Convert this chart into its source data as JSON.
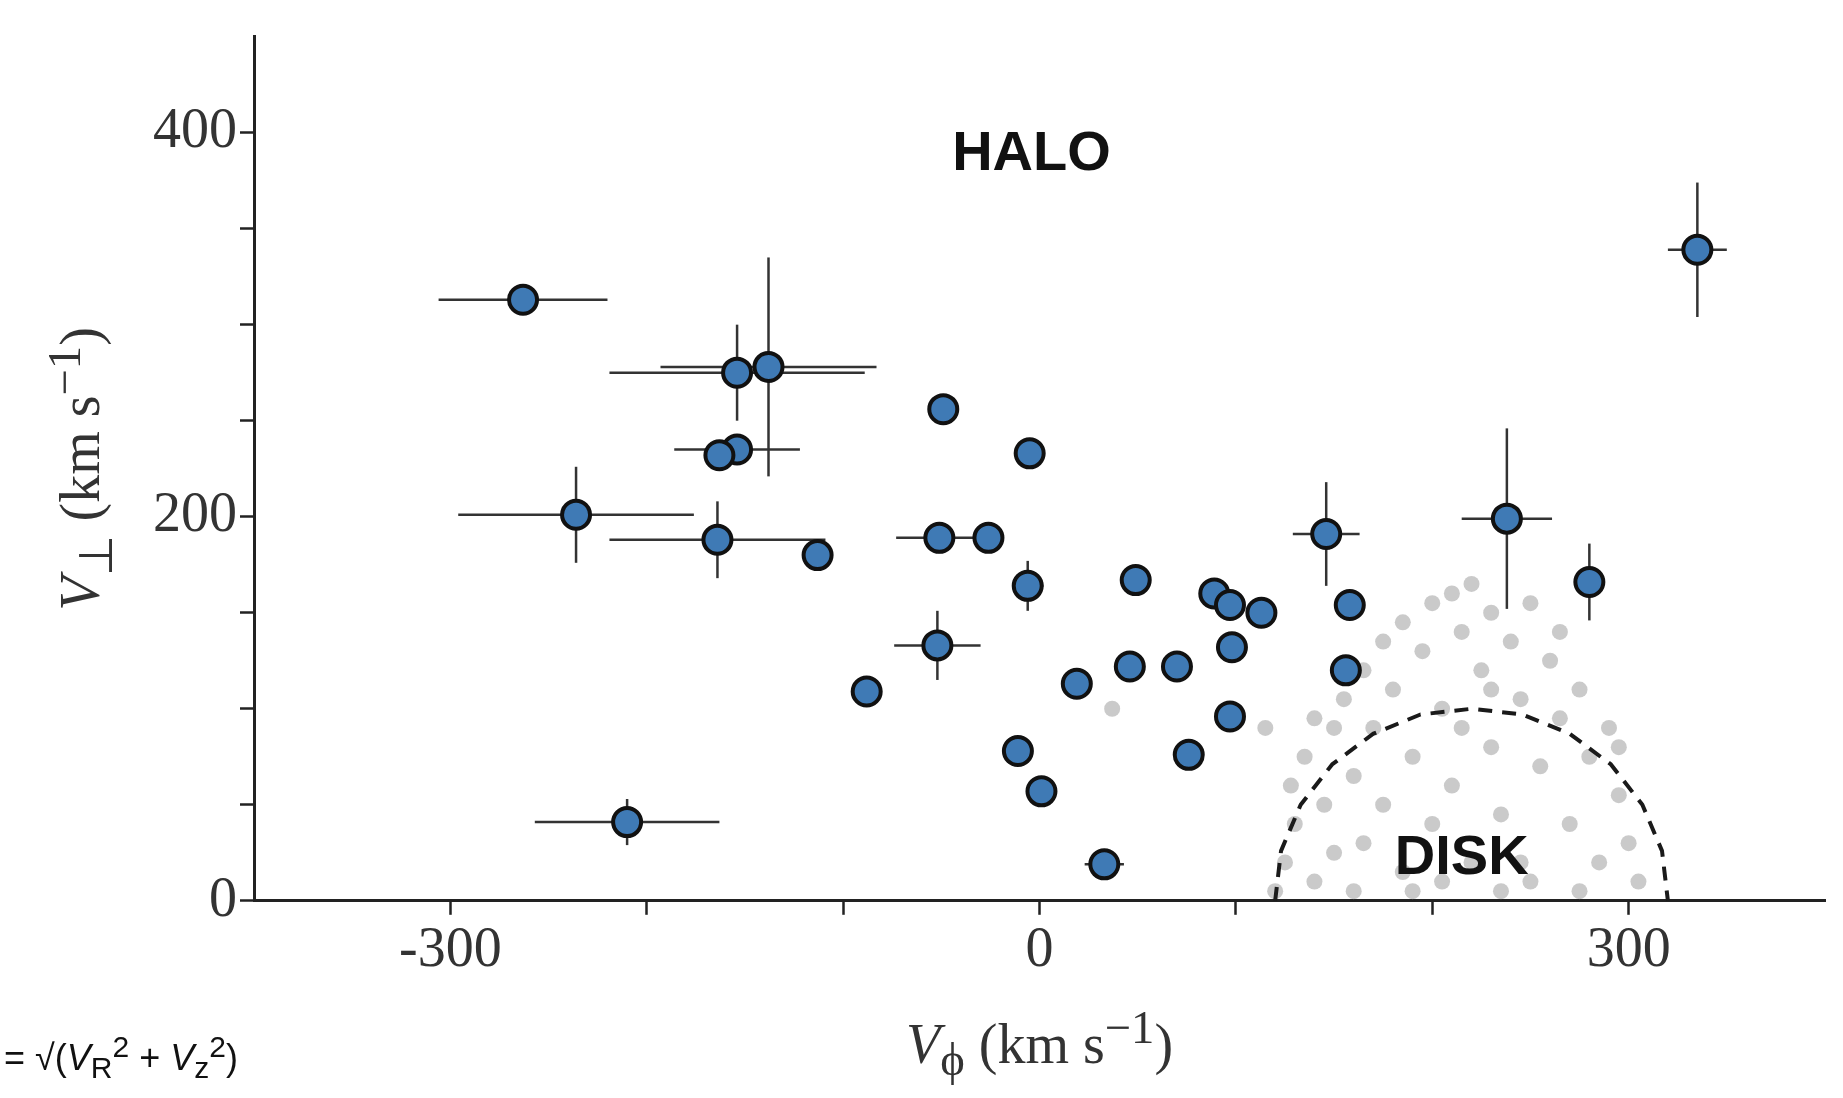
{
  "chart_data": {
    "type": "scatter",
    "xlabel": "V$_{ϕ}$ (km s$^{−1}$)",
    "ylabel": "V$_{⊥}$ (km s$^{−1}$)",
    "xlim": [
      -400,
      400
    ],
    "ylim": [
      0,
      450
    ],
    "xticks": [
      -300,
      {
        "value": -200,
        "label": null
      },
      {
        "value": -100,
        "label": null
      },
      0,
      {
        "value": 100,
        "label": null
      },
      {
        "value": 200,
        "label": null
      },
      300
    ],
    "yticks": [
      0,
      {
        "value": 50,
        "label": null
      },
      {
        "value": 100,
        "label": null
      },
      {
        "value": 150,
        "label": null
      },
      200,
      {
        "value": 250,
        "label": null
      },
      {
        "value": 300,
        "label": null
      },
      {
        "value": 350,
        "label": null
      },
      400
    ],
    "grid": false,
    "legend": false,
    "marker": "circle",
    "series": [
      {
        "color": "#a6a6a6",
        "x": [
          120,
          125,
          130,
          128,
          135,
          140,
          145,
          150,
          150,
          155,
          160,
          165,
          165,
          170,
          175,
          175,
          180,
          185,
          185,
          190,
          195,
          200,
          200,
          205,
          210,
          210,
          215,
          220,
          220,
          225,
          230,
          230,
          235,
          240,
          245,
          250,
          250,
          255,
          260,
          265,
          270,
          275,
          280,
          285,
          290,
          295,
          300,
          305,
          245,
          190,
          160,
          275,
          215,
          235,
          205,
          230,
          265,
          295,
          140,
          115,
          37
        ],
        "values": [
          5,
          20,
          40,
          60,
          75,
          10,
          50,
          90,
          25,
          105,
          65,
          120,
          30,
          90,
          135,
          50,
          110,
          145,
          15,
          75,
          130,
          155,
          40,
          100,
          160,
          60,
          140,
          165,
          20,
          120,
          150,
          80,
          45,
          135,
          105,
          155,
          10,
          70,
          125,
          95,
          40,
          110,
          75,
          20,
          90,
          55,
          30,
          10,
          20,
          5,
          5,
          5,
          90,
          5,
          10,
          110,
          140,
          80,
          95,
          90,
          100
        ]
      },
      {
        "type": "line",
        "color": "#1a1a1a",
        "line_style": "dashed",
        "marker": "none",
        "x": [
          120,
          123,
          133,
          149,
          170,
          194,
          220,
          246,
          270,
          291,
          307,
          317,
          320
        ],
        "values": [
          0,
          26,
          50,
          71,
          87,
          97,
          100,
          97,
          87,
          71,
          50,
          26,
          0
        ]
      },
      {
        "color": "#3f7ab5",
        "x": [
          -263,
          -154,
          -138,
          -49,
          -5,
          -154,
          -163,
          -236,
          -164,
          -113,
          -51,
          -26,
          -6,
          49,
          89,
          97,
          113,
          146,
          158,
          156,
          238,
          280,
          335,
          -52,
          -88,
          19,
          46,
          70,
          98,
          97,
          -11,
          1,
          76,
          33,
          -210
        ],
        "values": [
          313,
          275,
          278,
          256,
          233,
          235,
          232,
          201,
          188,
          180,
          189,
          189,
          164,
          167,
          160,
          154,
          150,
          191,
          154,
          120,
          199,
          166,
          339,
          133,
          109,
          113,
          122,
          122,
          132,
          96,
          78,
          57,
          76,
          19,
          41
        ],
        "errors": [
          null,
          25,
          57,
          null,
          null,
          null,
          null,
          25,
          20,
          null,
          8,
          null,
          13,
          null,
          null,
          null,
          null,
          27,
          null,
          null,
          47,
          20,
          35,
          18,
          null,
          null,
          null,
          null,
          null,
          null,
          null,
          null,
          null,
          6,
          12
        ],
        "xerrors": [
          43,
          65,
          55,
          null,
          null,
          32,
          null,
          60,
          55,
          null,
          22,
          null,
          8,
          null,
          null,
          null,
          null,
          17,
          null,
          null,
          23,
          null,
          15,
          22,
          null,
          null,
          null,
          null,
          null,
          null,
          null,
          null,
          null,
          10,
          47
        ]
      }
    ],
    "annotations": [
      "HALO",
      {
        "text": "DISK",
        "x": 215,
        "y": 22
      },
      "= √(V$_{R}$$^{2}$ + V$_{z}$$^{2}$)"
    ]
  }
}
